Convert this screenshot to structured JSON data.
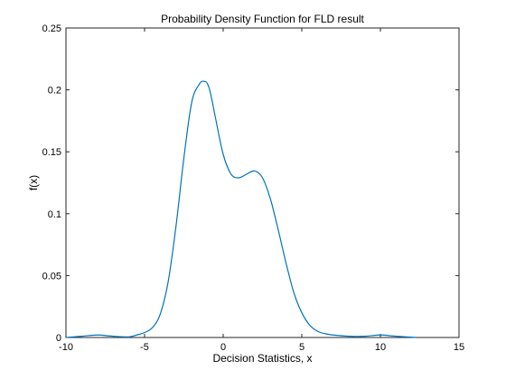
{
  "chart_data": {
    "type": "line",
    "title": "Probability Density Function for FLD result",
    "xlabel": "Decision Statistics, x",
    "ylabel": "f(x)",
    "xlim": [
      -10,
      15
    ],
    "ylim": [
      0,
      0.25
    ],
    "x_ticks": [
      -10,
      -5,
      0,
      5,
      10,
      15
    ],
    "x_tick_labels": [
      "-10",
      "-5",
      "0",
      "5",
      "10",
      "15"
    ],
    "y_ticks": [
      0,
      0.05,
      0.1,
      0.15,
      0.2,
      0.25
    ],
    "y_tick_labels": [
      "0",
      "0.05",
      "0.1",
      "0.15",
      "0.2",
      "0.25"
    ],
    "grid": false,
    "line_color": "#0072BD",
    "series": [
      {
        "x": [
          -10,
          -9,
          -8,
          -7,
          -6,
          -5.5,
          -5,
          -4.5,
          -4,
          -3.5,
          -3,
          -2.5,
          -2,
          -1.5,
          -1.2,
          -1,
          -0.8,
          -0.5,
          0,
          0.5,
          1,
          1.5,
          2,
          2.5,
          3,
          3.5,
          4,
          4.5,
          5,
          5.5,
          6,
          6.5,
          7,
          8,
          9,
          10,
          11,
          12.3
        ],
        "y": [
          0.0,
          0.001,
          0.002,
          0.001,
          0.0005,
          0.002,
          0.004,
          0.008,
          0.019,
          0.045,
          0.09,
          0.145,
          0.19,
          0.205,
          0.2068,
          0.205,
          0.197,
          0.178,
          0.148,
          0.132,
          0.129,
          0.132,
          0.1345,
          0.129,
          0.112,
          0.087,
          0.06,
          0.036,
          0.02,
          0.01,
          0.005,
          0.003,
          0.002,
          0.001,
          0.001,
          0.002,
          0.001,
          0.0
        ]
      }
    ]
  }
}
